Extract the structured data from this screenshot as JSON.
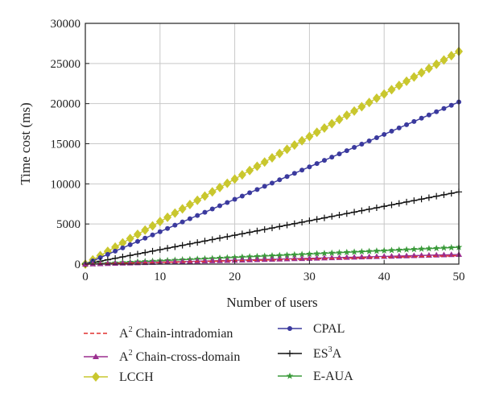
{
  "chart_data": {
    "type": "line",
    "xlabel": "Number of users",
    "ylabel": "Time cost (ms)",
    "xlim": [
      0,
      50
    ],
    "ylim": [
      0,
      30000
    ],
    "xticks": [
      "0",
      "10",
      "20",
      "30",
      "40",
      "50"
    ],
    "yticks": [
      "0",
      "5000",
      "10000",
      "15000",
      "20000",
      "25000",
      "30000"
    ],
    "grid": true,
    "legend_position": "bottom",
    "series": [
      {
        "name": "A² Chain-intradomian",
        "legend_main": "A",
        "legend_sup": "2",
        "legend_rest": " Chain-intradomian",
        "color": "#e0302e",
        "marker": "none",
        "dash": true,
        "y_at_0": 0,
        "y_at_50": 1050
      },
      {
        "name": "A² Chain-cross-domain",
        "legend_main": "A",
        "legend_sup": "2",
        "legend_rest": " Chain-cross-domain",
        "color": "#9b2f8f",
        "marker": "triangle",
        "dash": false,
        "y_at_0": 0,
        "y_at_50": 1200
      },
      {
        "name": "LCCH",
        "legend_main": "LCCH",
        "legend_sup": "",
        "legend_rest": "",
        "color": "#c9c72e",
        "marker": "diamond",
        "dash": false,
        "y_at_0": 0,
        "y_at_50": 26500
      },
      {
        "name": "CPAL",
        "legend_main": "CPAL",
        "legend_sup": "",
        "legend_rest": "",
        "color": "#3b3a9e",
        "marker": "circle",
        "dash": false,
        "y_at_0": 0,
        "y_at_50": 20200
      },
      {
        "name": "ES³A",
        "legend_main": "ES",
        "legend_sup": "3",
        "legend_rest": "A",
        "color": "#111111",
        "marker": "plus",
        "dash": false,
        "y_at_0": 0,
        "y_at_50": 9000
      },
      {
        "name": "E-AUA",
        "legend_main": "E-AUA",
        "legend_sup": "",
        "legend_rest": "",
        "color": "#3a9a3a",
        "marker": "star",
        "dash": false,
        "y_at_0": 0,
        "y_at_50": 2100
      }
    ]
  }
}
